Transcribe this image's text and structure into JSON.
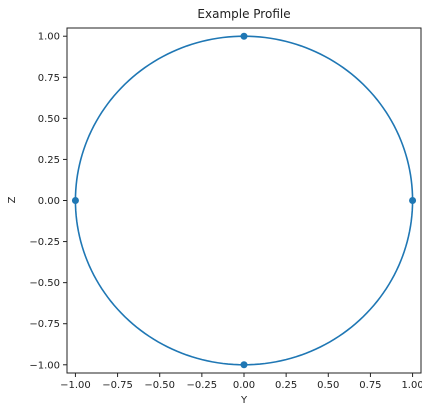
{
  "chart_data": {
    "type": "line",
    "title": "Example Profile",
    "xlabel": "Y",
    "ylabel": "Z",
    "xlim": [
      -1.05,
      1.05
    ],
    "ylim": [
      -1.05,
      1.05
    ],
    "xticks": [
      -1.0,
      -0.75,
      -0.5,
      -0.25,
      0.0,
      0.25,
      0.5,
      0.75,
      1.0
    ],
    "yticks": [
      -1.0,
      -0.75,
      -0.5,
      -0.25,
      0.0,
      0.25,
      0.5,
      0.75,
      1.0
    ],
    "xtick_labels": [
      "−1.00",
      "−0.75",
      "−0.50",
      "−0.25",
      "0.00",
      "0.25",
      "0.50",
      "0.75",
      "1.00"
    ],
    "ytick_labels": [
      "−1.00",
      "−0.75",
      "−0.50",
      "−0.25",
      "0.00",
      "0.25",
      "0.50",
      "0.75",
      "1.00"
    ],
    "grid": false,
    "series": [
      {
        "kind": "curve",
        "shape": "circle",
        "center": [
          0,
          0
        ],
        "radius": 1,
        "color": "#1f77b4"
      },
      {
        "kind": "points",
        "color": "#1f77b4",
        "x": [
          0,
          -1,
          1,
          0
        ],
        "y": [
          1,
          0,
          0,
          -1
        ]
      }
    ]
  }
}
